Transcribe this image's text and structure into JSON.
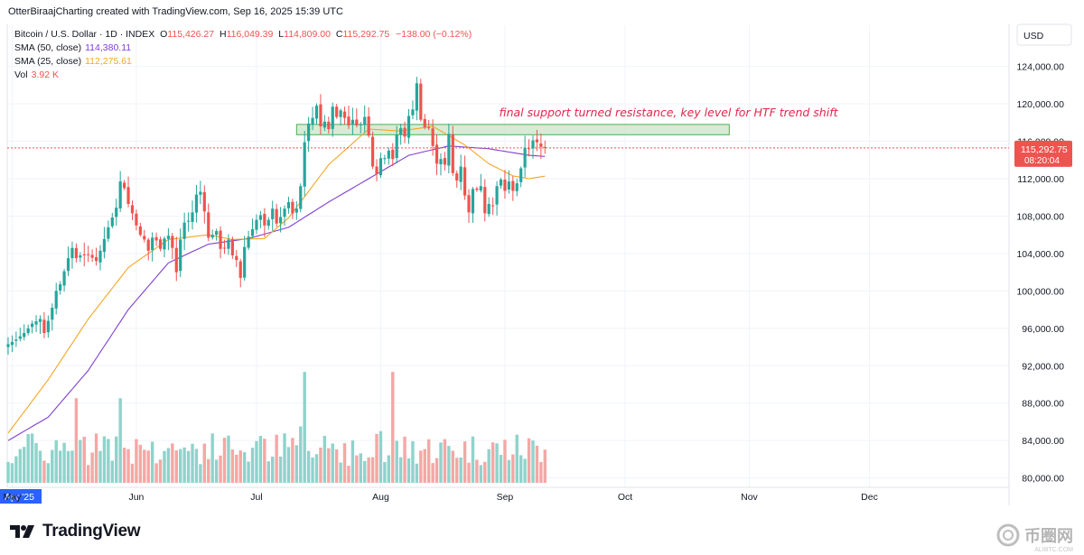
{
  "header": {
    "attribution": "OtterBiraajCharting created with TradingView.com, Sep 16, 2025 15:39 UTC"
  },
  "legend": {
    "symbol": "Bitcoin / U.S. Dollar · 1D · INDEX",
    "open_key": "O",
    "open": "115,426.27",
    "high_key": "H",
    "high": "116,049.39",
    "low_key": "L",
    "low": "114,809.00",
    "close_key": "C",
    "close": "115,292.75",
    "change": "−138.00 (−0.12%)",
    "sma50_label": "SMA (50, close)",
    "sma50_value": "114,380.11",
    "sma25_label": "SMA (25, close)",
    "sma25_value": "112,275.61",
    "vol_label": "Vol",
    "vol_value": "3.92 K"
  },
  "price_axis": {
    "currency": "USD",
    "last_price": "115,292.75",
    "countdown": "08:20:04"
  },
  "annotation": {
    "text": "final support turned resistance, key level for HTF trend shift"
  },
  "colors": {
    "up": "#26a69a",
    "down": "#ef5350",
    "sma50": "#7e3fd1",
    "sma25": "#f5a623",
    "zone_fill": "#c8e6c9",
    "zone_stroke": "#4caf50",
    "annotation": "#e0264b"
  },
  "branding": {
    "logo_text": "TradingView",
    "watermark_text": "币圈网",
    "watermark_sub": "ALIBTC.COM"
  },
  "chart_data": {
    "type": "candlestick",
    "y_ticks": [
      80000,
      84000,
      88000,
      92000,
      96000,
      100000,
      104000,
      108000,
      112000,
      116000,
      120000,
      124000
    ],
    "y_tick_labels": [
      "80,000.00",
      "84,000.00",
      "88,000.00",
      "92,000.00",
      "96,000.00",
      "100,000.00",
      "104,000.00",
      "108,000.00",
      "112,000.00",
      "116,000.00",
      "120,000.00",
      "124,000.00"
    ],
    "ylim": [
      79000,
      128500
    ],
    "x_labels": [
      {
        "label": "Apr '25",
        "day": 0
      },
      {
        "label": "May",
        "day": 1
      },
      {
        "label": "Jun",
        "day": 32
      },
      {
        "label": "Jul",
        "day": 62
      },
      {
        "label": "Aug",
        "day": 93
      },
      {
        "label": "Sep",
        "day": 124
      },
      {
        "label": "Oct",
        "day": 154
      },
      {
        "label": "Nov",
        "day": 185
      },
      {
        "label": "Dec",
        "day": 215
      }
    ],
    "price_keypoints": [
      [
        0,
        94300
      ],
      [
        2,
        94800
      ],
      [
        4,
        95500
      ],
      [
        6,
        96500
      ],
      [
        8,
        97000
      ],
      [
        9,
        95500
      ],
      [
        10,
        96800
      ],
      [
        11,
        98200
      ],
      [
        12,
        100000
      ],
      [
        13,
        100700
      ],
      [
        15,
        103500
      ],
      [
        16,
        104600
      ],
      [
        17,
        103500
      ],
      [
        18,
        103800
      ],
      [
        20,
        103900
      ],
      [
        22,
        103200
      ],
      [
        23,
        104300
      ],
      [
        25,
        106800
      ],
      [
        27,
        108900
      ],
      [
        28,
        111700
      ],
      [
        29,
        111000
      ],
      [
        30,
        109300
      ],
      [
        31,
        108300
      ],
      [
        32,
        107000
      ],
      [
        33,
        106000
      ],
      [
        34,
        105500
      ],
      [
        35,
        104300
      ],
      [
        36,
        105700
      ],
      [
        37,
        105400
      ],
      [
        38,
        104500
      ],
      [
        39,
        105600
      ],
      [
        40,
        105900
      ],
      [
        41,
        104600
      ],
      [
        42,
        102000
      ],
      [
        43,
        105500
      ],
      [
        44,
        107300
      ],
      [
        45,
        107500
      ],
      [
        46,
        108400
      ],
      [
        47,
        110300
      ],
      [
        48,
        110600
      ],
      [
        49,
        108500
      ],
      [
        50,
        105700
      ],
      [
        51,
        106000
      ],
      [
        52,
        106400
      ],
      [
        53,
        104500
      ],
      [
        54,
        104600
      ],
      [
        55,
        105500
      ],
      [
        56,
        103800
      ],
      [
        57,
        103300
      ],
      [
        58,
        101400
      ],
      [
        59,
        104700
      ],
      [
        60,
        105800
      ],
      [
        61,
        106600
      ],
      [
        62,
        107600
      ],
      [
        63,
        108100
      ],
      [
        64,
        107000
      ],
      [
        65,
        107600
      ],
      [
        66,
        108800
      ],
      [
        67,
        107200
      ],
      [
        68,
        107900
      ],
      [
        69,
        108800
      ],
      [
        70,
        109500
      ],
      [
        71,
        108300
      ],
      [
        72,
        108800
      ],
      [
        73,
        111200
      ],
      [
        74,
        115900
      ],
      [
        75,
        117900
      ],
      [
        76,
        118500
      ],
      [
        77,
        119800
      ],
      [
        78,
        117600
      ],
      [
        79,
        118100
      ],
      [
        80,
        117300
      ],
      [
        81,
        119700
      ],
      [
        82,
        118600
      ],
      [
        83,
        119300
      ],
      [
        84,
        118500
      ],
      [
        85,
        117700
      ],
      [
        86,
        118300
      ],
      [
        87,
        117700
      ],
      [
        88,
        117800
      ],
      [
        89,
        118600
      ],
      [
        90,
        116600
      ],
      [
        91,
        113300
      ],
      [
        92,
        112500
      ],
      [
        93,
        114200
      ],
      [
        94,
        114200
      ],
      [
        95,
        115000
      ],
      [
        96,
        114100
      ],
      [
        97,
        116700
      ],
      [
        98,
        117400
      ],
      [
        99,
        116500
      ],
      [
        100,
        118700
      ],
      [
        101,
        119400
      ],
      [
        102,
        122200
      ],
      [
        103,
        118300
      ],
      [
        104,
        117500
      ],
      [
        105,
        117400
      ],
      [
        106,
        115500
      ],
      [
        107,
        113600
      ],
      [
        108,
        114100
      ],
      [
        109,
        113500
      ],
      [
        110,
        116800
      ],
      [
        111,
        112600
      ],
      [
        112,
        111800
      ],
      [
        113,
        113300
      ],
      [
        114,
        110200
      ],
      [
        115,
        108400
      ],
      [
        116,
        110900
      ],
      [
        117,
        110800
      ],
      [
        118,
        111200
      ],
      [
        119,
        108300
      ],
      [
        120,
        109300
      ],
      [
        121,
        109100
      ],
      [
        122,
        111200
      ],
      [
        123,
        111900
      ],
      [
        124,
        110700
      ],
      [
        125,
        111700
      ],
      [
        126,
        110700
      ],
      [
        127,
        111500
      ],
      [
        128,
        113100
      ],
      [
        129,
        115300
      ],
      [
        130,
        115200
      ],
      [
        131,
        116100
      ],
      [
        132,
        115900
      ],
      [
        133,
        115400
      ],
      [
        134,
        115290
      ]
    ],
    "series": [
      {
        "name": "SMA (50, close)",
        "keypoints": [
          [
            0,
            84000
          ],
          [
            10,
            86500
          ],
          [
            20,
            91500
          ],
          [
            30,
            98000
          ],
          [
            40,
            103000
          ],
          [
            50,
            105000
          ],
          [
            60,
            105600
          ],
          [
            70,
            106800
          ],
          [
            80,
            109500
          ],
          [
            90,
            112000
          ],
          [
            100,
            114500
          ],
          [
            110,
            115500
          ],
          [
            120,
            115200
          ],
          [
            130,
            114500
          ],
          [
            134,
            114380
          ]
        ]
      },
      {
        "name": "SMA (25, close)",
        "keypoints": [
          [
            0,
            84800
          ],
          [
            10,
            90500
          ],
          [
            20,
            97000
          ],
          [
            30,
            102500
          ],
          [
            40,
            105500
          ],
          [
            50,
            106000
          ],
          [
            56,
            105500
          ],
          [
            64,
            105600
          ],
          [
            70,
            107800
          ],
          [
            80,
            113500
          ],
          [
            90,
            117300
          ],
          [
            98,
            117100
          ],
          [
            106,
            117600
          ],
          [
            114,
            115600
          ],
          [
            120,
            113600
          ],
          [
            126,
            112300
          ],
          [
            130,
            112000
          ],
          [
            134,
            112275
          ]
        ]
      }
    ],
    "volume_scale_max": 12.0,
    "last_volume": 3.92,
    "resistance_zone": {
      "top": 117800,
      "bottom": 116700,
      "x_start_day": 72,
      "x_end_day": 180
    },
    "current_price": 115292.75
  }
}
